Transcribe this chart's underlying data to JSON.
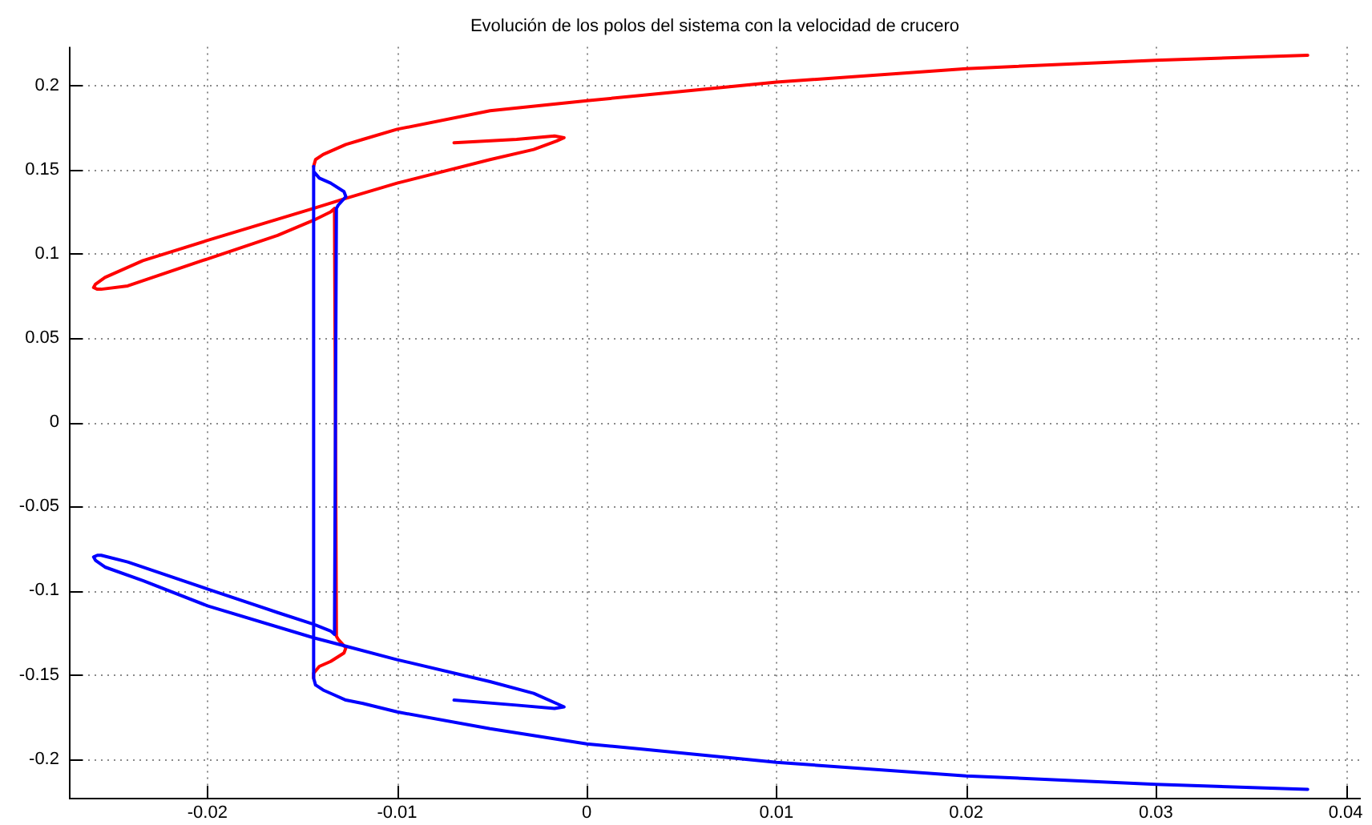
{
  "chart_data": {
    "type": "line",
    "title": "Evolución de los polos del sistema con la velocidad de crucero",
    "xlim": [
      -0.0273,
      0.0408
    ],
    "xticks": [
      -0.02,
      -0.01,
      0,
      0.01,
      0.02,
      0.03,
      0.04
    ],
    "ylim": [
      -0.223,
      0.223
    ],
    "yticks": [
      -0.2,
      -0.15,
      -0.1,
      -0.05,
      0,
      0.05,
      0.1,
      0.15,
      0.2
    ],
    "grid": true,
    "legend": false,
    "marker": "none",
    "line_style": "solid",
    "series": [
      {
        "color": "#ff0000",
        "x": [
          -0.007,
          -0.0037,
          -0.0017,
          -0.0012,
          -0.0016,
          -0.0028,
          -0.0051,
          -0.01,
          -0.0127,
          -0.0144,
          -0.02,
          -0.0234,
          -0.0254,
          -0.0259,
          -0.026,
          -0.0258,
          -0.0256,
          -0.0242,
          -0.02,
          -0.0163,
          -0.0144,
          -0.0135,
          -0.0133,
          -0.0132,
          -0.0131,
          -0.0127,
          -0.0128,
          -0.0135,
          -0.0141,
          -0.0144,
          -0.0144
        ],
        "values": [
          0.166,
          0.168,
          0.17,
          0.169,
          0.167,
          0.162,
          0.156,
          0.142,
          0.133,
          0.127,
          0.108,
          0.096,
          0.086,
          0.082,
          0.08,
          0.079,
          0.079,
          0.081,
          0.097,
          0.111,
          0.12,
          0.125,
          0.127,
          -0.127,
          -0.129,
          -0.134,
          -0.137,
          -0.142,
          -0.145,
          -0.149,
          -0.152
        ]
      },
      {
        "color": "#ff0000",
        "x": [
          -0.0144,
          -0.0143,
          -0.0139,
          -0.0133,
          -0.0127,
          -0.0118,
          -0.01,
          -0.0051,
          0,
          0.0028,
          0.01,
          0.02,
          0.03,
          0.038
        ],
        "values": [
          0.152,
          0.156,
          0.159,
          0.162,
          0.165,
          0.168,
          0.174,
          0.185,
          0.191,
          0.194,
          0.202,
          0.21,
          0.215,
          0.218
        ]
      },
      {
        "color": "#0000ff",
        "x": [
          -0.007,
          -0.0037,
          -0.0017,
          -0.0012,
          -0.0016,
          -0.0028,
          -0.0051,
          -0.01,
          -0.0127,
          -0.0144,
          -0.02,
          -0.0234,
          -0.0254,
          -0.0259,
          -0.026,
          -0.0258,
          -0.0256,
          -0.0242,
          -0.02,
          -0.0163,
          -0.0144,
          -0.0135,
          -0.0133,
          -0.0132,
          -0.0131,
          -0.0127,
          -0.0128,
          -0.0135,
          -0.0141,
          -0.0144,
          -0.0144,
          -0.0144,
          -0.0143,
          -0.0139,
          -0.0133,
          -0.0127,
          -0.0118,
          -0.01,
          -0.0051,
          0,
          0.0028,
          0.01,
          0.02,
          0.03,
          0.038
        ],
        "values": [
          -0.165,
          -0.168,
          -0.17,
          -0.169,
          -0.167,
          -0.161,
          -0.154,
          -0.141,
          -0.133,
          -0.128,
          -0.109,
          -0.094,
          -0.086,
          -0.082,
          -0.08,
          -0.079,
          -0.079,
          -0.083,
          -0.099,
          -0.113,
          -0.12,
          -0.124,
          -0.126,
          0.127,
          0.129,
          0.134,
          0.137,
          0.142,
          0.145,
          0.149,
          0.152,
          -0.152,
          -0.156,
          -0.159,
          -0.162,
          -0.165,
          -0.167,
          -0.172,
          -0.182,
          -0.191,
          -0.194,
          -0.202,
          -0.21,
          -0.215,
          -0.218
        ]
      }
    ]
  }
}
